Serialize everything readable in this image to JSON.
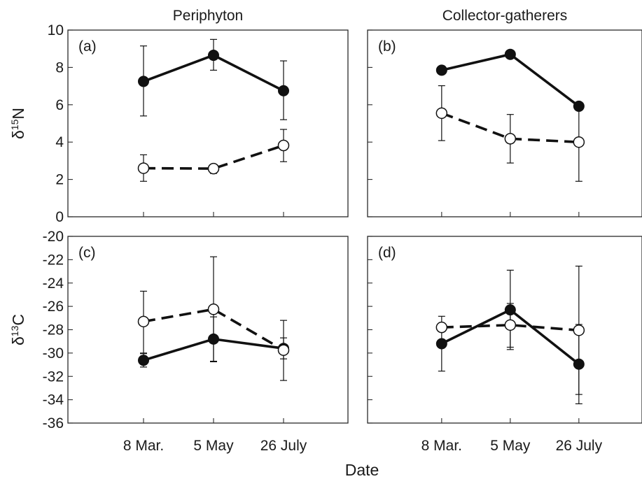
{
  "chart_data": {
    "type": "line",
    "xlabel": "Date",
    "categories": [
      "8 Mar.",
      "5 May",
      "26 July"
    ],
    "columns": [
      "Periphyton",
      "Collector-gatherers"
    ],
    "rows": [
      {
        "key": "n15",
        "ylabel": "δ15N",
        "ylabel_base": "δ",
        "ylabel_sup": "15",
        "ylabel_suffix": "N",
        "ylim": [
          0,
          10
        ],
        "yticks": [
          "0",
          "2",
          "4",
          "6",
          "8",
          "10"
        ]
      },
      {
        "key": "c13",
        "ylabel": "δ13C",
        "ylabel_base": "δ",
        "ylabel_sup": "13",
        "ylabel_suffix": "C",
        "ylim": [
          -36,
          -20
        ],
        "yticks": [
          "-36",
          "-34",
          "-32",
          "-30",
          "-28",
          "-26",
          "-24",
          "-22",
          "-20"
        ]
      }
    ],
    "panels": [
      {
        "label": "(a)",
        "column": "Periphyton",
        "row": "n15",
        "series": [
          {
            "style": "filled-solid",
            "values": [
              7.25,
              8.65,
              6.75
            ],
            "err_low": [
              5.4,
              7.85,
              5.2
            ],
            "err_high": [
              9.15,
              9.5,
              8.35
            ]
          },
          {
            "style": "open-dashed",
            "values": [
              2.6,
              2.58,
              3.82
            ],
            "err_low": [
              1.9,
              2.32,
              2.95
            ],
            "err_high": [
              3.32,
              2.8,
              4.68
            ]
          }
        ]
      },
      {
        "label": "(b)",
        "column": "Collector-gatherers",
        "row": "n15",
        "series": [
          {
            "style": "filled-solid",
            "values": [
              7.85,
              8.7,
              5.92
            ],
            "err_low": [
              null,
              null,
              null
            ],
            "err_high": [
              null,
              null,
              null
            ]
          },
          {
            "style": "open-dashed",
            "values": [
              5.55,
              4.18,
              4.0
            ],
            "err_low": [
              4.08,
              2.88,
              1.9
            ],
            "err_high": [
              7.02,
              5.48,
              6.0
            ]
          }
        ]
      },
      {
        "label": "(c)",
        "column": "Periphyton",
        "row": "c13",
        "series": [
          {
            "style": "filled-solid",
            "values": [
              -30.62,
              -28.8,
              -29.6
            ],
            "err_low": [
              -31.2,
              -30.7,
              -30.5
            ],
            "err_high": [
              -30.05,
              -26.9,
              -28.7
            ]
          },
          {
            "style": "open-dashed",
            "values": [
              -27.3,
              -26.25,
              -29.75
            ],
            "err_low": [
              -30.0,
              -30.75,
              -32.35
            ],
            "err_high": [
              -24.7,
              -21.75,
              -27.2
            ]
          }
        ]
      },
      {
        "label": "(d)",
        "column": "Collector-gatherers",
        "row": "c13",
        "series": [
          {
            "style": "filled-solid",
            "values": [
              -29.2,
              -26.3,
              -30.95
            ],
            "err_low": [
              -31.55,
              -29.7,
              -34.35
            ],
            "err_high": [
              -26.85,
              -22.9,
              -27.55
            ]
          },
          {
            "style": "open-dashed",
            "values": [
              -27.8,
              -27.6,
              -28.05
            ],
            "err_low": [
              null,
              -29.5,
              -33.55
            ],
            "err_high": [
              null,
              -25.75,
              -22.55
            ]
          }
        ]
      }
    ]
  }
}
